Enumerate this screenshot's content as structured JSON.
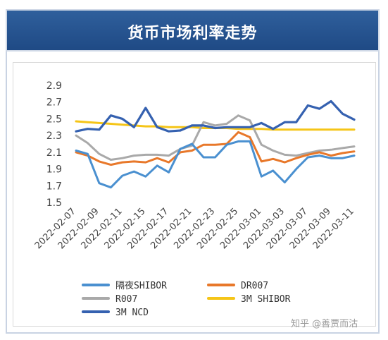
{
  "header": {
    "title": "货币市场利率走势"
  },
  "watermark": "知乎 @善贾而沽",
  "colors": {
    "header_bg": "#244f8c",
    "series": [
      "#4a90d0",
      "#e8782a",
      "#a9a9a9",
      "#f5c518",
      "#3561b0"
    ]
  },
  "chart_data": {
    "type": "line",
    "title": "货币市场利率走势",
    "ylim": [
      1.5,
      2.9
    ],
    "yticks": [
      "2.9",
      "2.7",
      "2.5",
      "2.3",
      "2.1",
      "1.9",
      "1.7",
      "1.5"
    ],
    "grid": false,
    "legend_position": "bottom",
    "x": [
      "2022-02-07",
      "2022-02-08",
      "2022-02-09",
      "2022-02-10",
      "2022-02-11",
      "2022-02-14",
      "2022-02-15",
      "2022-02-16",
      "2022-02-17",
      "2022-02-18",
      "2022-02-21",
      "2022-02-22",
      "2022-02-23",
      "2022-02-24",
      "2022-02-25",
      "2022-02-28",
      "2022-03-01",
      "2022-03-02",
      "2022-03-03",
      "2022-03-04",
      "2022-03-07",
      "2022-03-08",
      "2022-03-09",
      "2022-03-10",
      "2022-03-11"
    ],
    "xticks": [
      "2022-02-07",
      "2022-02-09",
      "2022-02-11",
      "2022-02-15",
      "2022-02-17",
      "2022-02-21",
      "2022-02-23",
      "2022-02-25",
      "2022-03-01",
      "2022-03-03",
      "2022-03-07",
      "2022-03-09",
      "2022-03-11"
    ],
    "series": [
      {
        "name": "隔夜SHIBOR",
        "color": "#4a90d0",
        "values": [
          2.12,
          2.08,
          1.73,
          1.68,
          1.82,
          1.87,
          1.81,
          1.94,
          1.86,
          2.14,
          2.2,
          2.04,
          2.04,
          2.19,
          2.23,
          2.23,
          1.81,
          1.88,
          1.74,
          1.9,
          2.04,
          2.06,
          2.03,
          2.03,
          2.06
        ]
      },
      {
        "name": "DR007",
        "color": "#e8782a",
        "values": [
          2.1,
          2.06,
          1.99,
          1.95,
          1.98,
          1.99,
          1.98,
          2.03,
          1.98,
          2.1,
          2.12,
          2.19,
          2.19,
          2.2,
          2.34,
          2.28,
          1.99,
          2.02,
          1.98,
          2.03,
          2.07,
          2.1,
          2.06,
          2.09,
          2.11
        ]
      },
      {
        "name": "R007",
        "color": "#a9a9a9",
        "values": [
          2.3,
          2.21,
          2.08,
          2.01,
          2.03,
          2.06,
          2.07,
          2.07,
          2.06,
          2.14,
          2.18,
          2.46,
          2.42,
          2.44,
          2.54,
          2.48,
          2.19,
          2.12,
          2.07,
          2.06,
          2.09,
          2.12,
          2.13,
          2.15,
          2.17
        ]
      },
      {
        "name": "3M SHIBOR",
        "color": "#f5c518",
        "values": [
          2.47,
          2.46,
          2.45,
          2.44,
          2.43,
          2.42,
          2.41,
          2.41,
          2.4,
          2.4,
          2.4,
          2.39,
          2.39,
          2.39,
          2.38,
          2.38,
          2.38,
          2.37,
          2.37,
          2.37,
          2.37,
          2.37,
          2.37,
          2.37,
          2.37
        ]
      },
      {
        "name": "3M NCD",
        "color": "#3561b0",
        "values": [
          2.35,
          2.38,
          2.37,
          2.54,
          2.5,
          2.4,
          2.63,
          2.4,
          2.35,
          2.36,
          2.42,
          2.42,
          2.39,
          2.4,
          2.4,
          2.4,
          2.45,
          2.38,
          2.46,
          2.46,
          2.66,
          2.62,
          2.71,
          2.56,
          2.49
        ]
      }
    ]
  }
}
